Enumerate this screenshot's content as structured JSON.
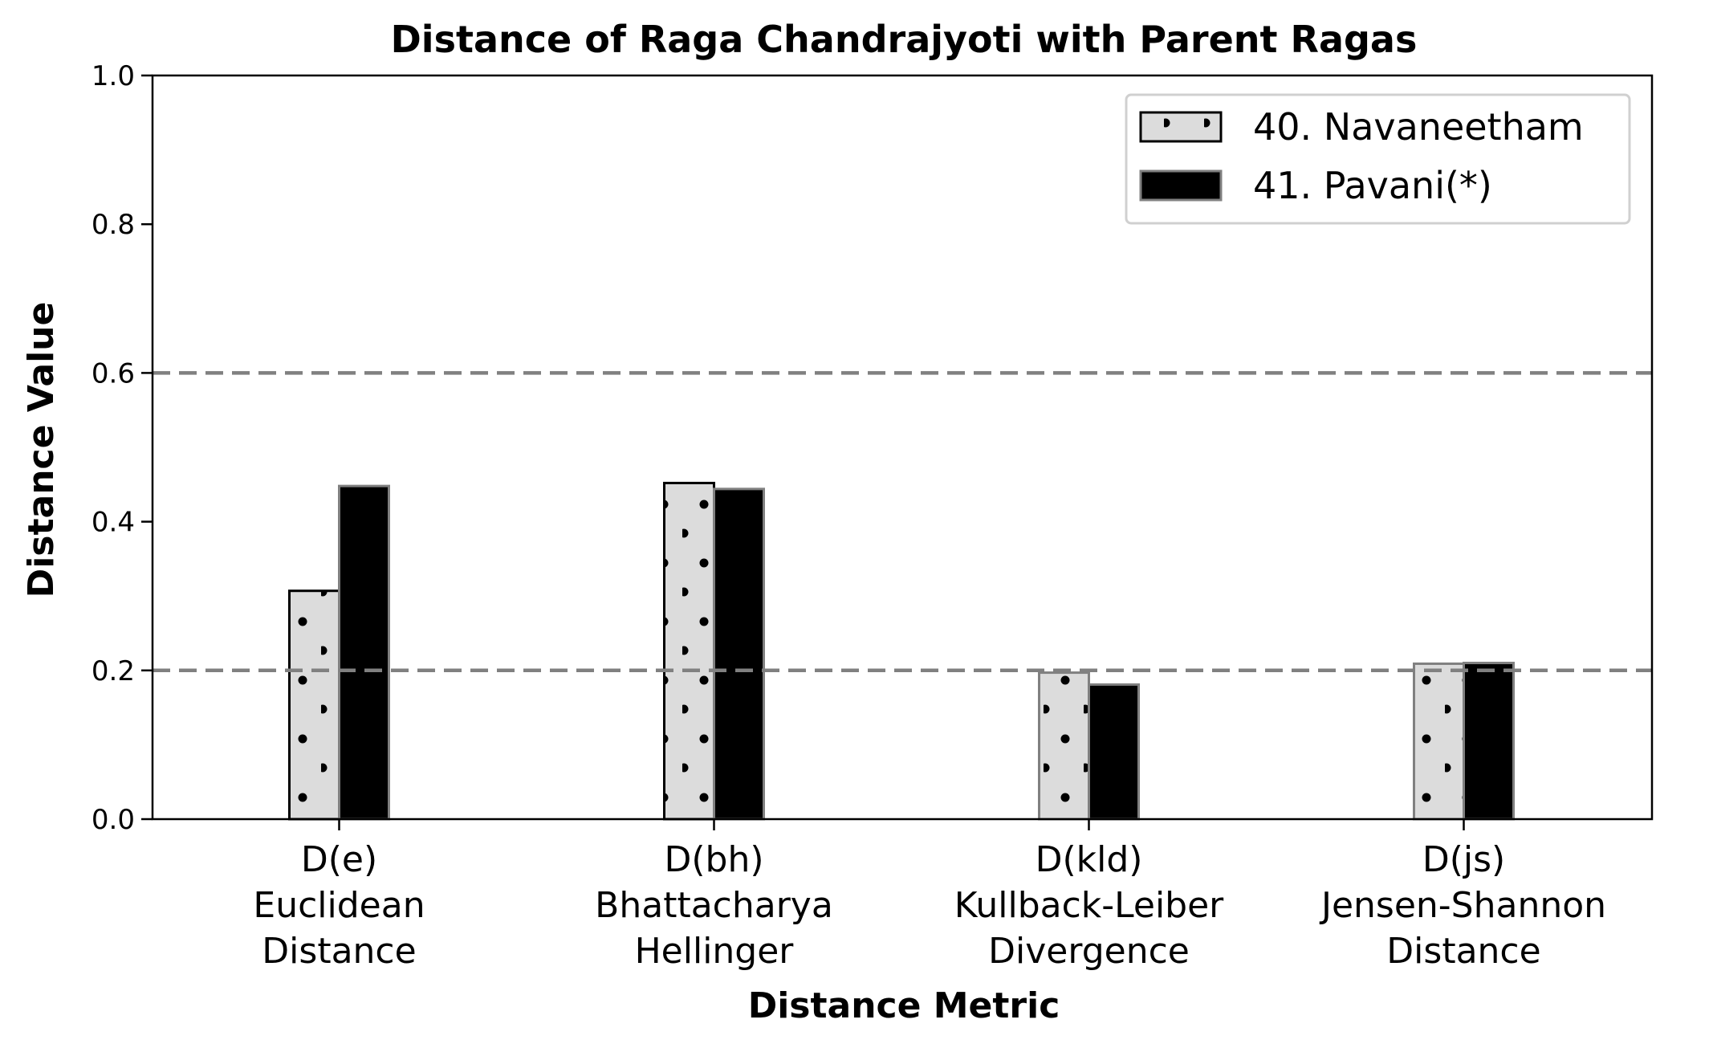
{
  "chart_data": {
    "type": "bar",
    "title": "Distance of Raga Chandrajyoti with Parent Ragas",
    "xlabel": "Distance Metric",
    "ylabel": "Distance Value",
    "ylim": [
      0,
      1.0
    ],
    "yticks": [
      "0.0",
      "0.2",
      "0.4",
      "0.6",
      "0.8",
      "1.0"
    ],
    "categories": [
      [
        "D(e)",
        "Euclidean",
        "Distance"
      ],
      [
        "D(bh)",
        "Bhattacharya",
        "Hellinger"
      ],
      [
        "D(kld)",
        "Kullback-Leiber",
        "Divergence"
      ],
      [
        "D(js)",
        "Jensen-Shannon",
        "Distance"
      ]
    ],
    "series": [
      {
        "name": "40. Navaneetham",
        "values": [
          0.307,
          0.452,
          0.197,
          0.209
        ],
        "fill": "#dcdcdc",
        "pattern": "dots"
      },
      {
        "name": "41. Pavani(*)",
        "values": [
          0.448,
          0.444,
          0.181,
          0.21
        ],
        "fill": "#000000",
        "pattern": "solid"
      }
    ],
    "reference_lines": [
      0.2,
      0.6
    ],
    "grid": false,
    "legend": "top-right"
  }
}
